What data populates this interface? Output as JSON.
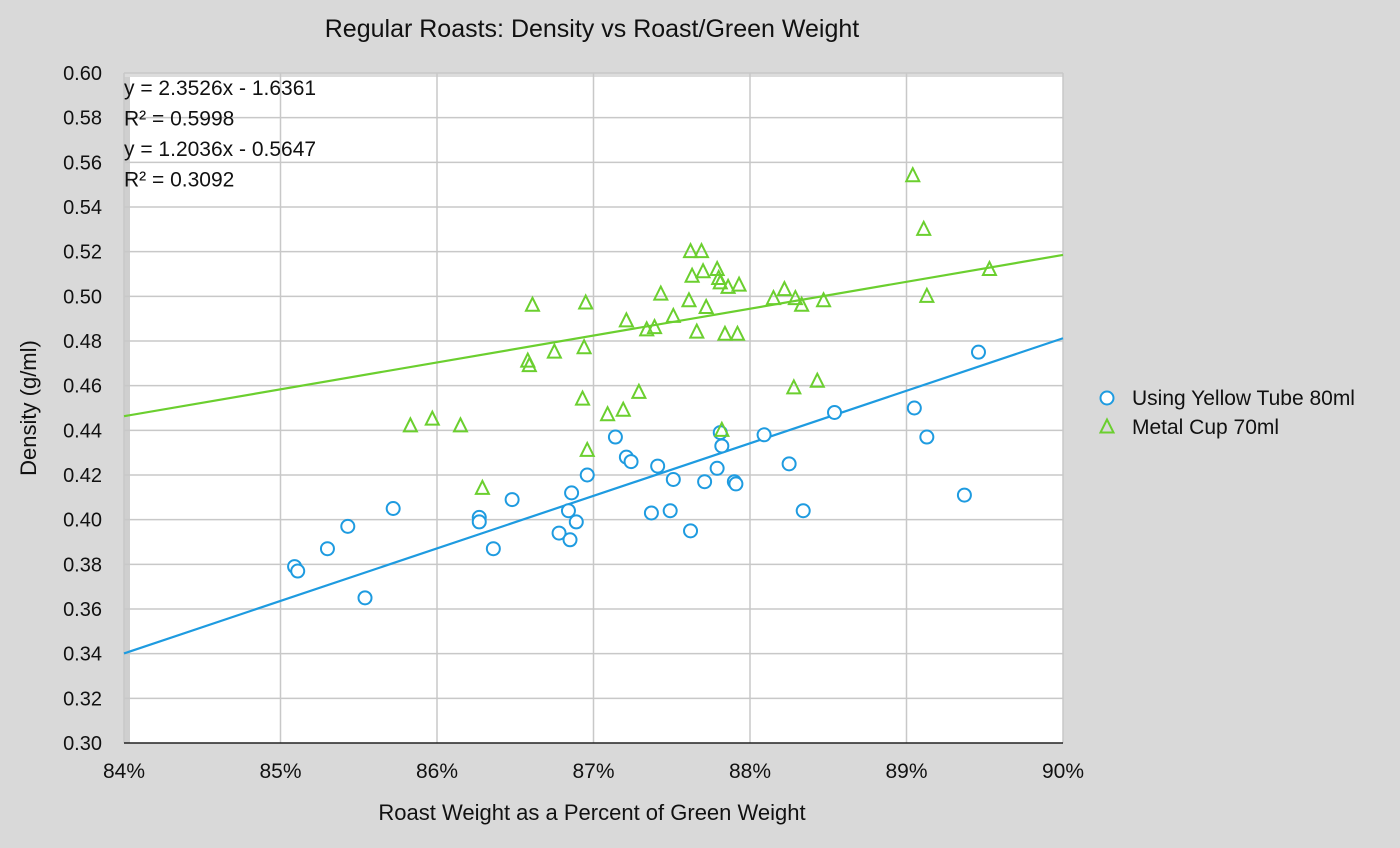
{
  "chart_data": {
    "type": "scatter",
    "title": "Regular Roasts: Density vs Roast/Green Weight",
    "xlabel": "Roast Weight as a Percent of Green Weight",
    "ylabel": "Density (g/ml)",
    "xlim": [
      0.84,
      0.9
    ],
    "ylim": [
      0.3,
      0.6
    ],
    "x_ticks": [
      0.84,
      0.85,
      0.86,
      0.87,
      0.88,
      0.89,
      0.9
    ],
    "x_tick_labels": [
      "84%",
      "85%",
      "86%",
      "87%",
      "88%",
      "89%",
      "90%"
    ],
    "y_ticks": [
      0.3,
      0.32,
      0.34,
      0.36,
      0.38,
      0.4,
      0.42,
      0.44,
      0.46,
      0.48,
      0.5,
      0.52,
      0.54,
      0.56,
      0.58,
      0.6
    ],
    "y_tick_labels": [
      "0.30",
      "0.32",
      "0.34",
      "0.36",
      "0.38",
      "0.40",
      "0.42",
      "0.44",
      "0.46",
      "0.48",
      "0.50",
      "0.52",
      "0.54",
      "0.56",
      "0.58",
      "0.60"
    ],
    "grid": true,
    "legend_position": "right",
    "annotations": [
      "y = 2.3526x - 1.6361",
      "R² = 0.5998",
      "y = 1.2036x - 0.5647",
      "R² = 0.3092"
    ],
    "series": [
      {
        "name": "Using Yellow Tube 80ml",
        "marker": "circle",
        "color": "#1e9be0",
        "trendline": {
          "slope": 2.3526,
          "intercept": -1.6361
        },
        "points": [
          [
            0.8509,
            0.379
          ],
          [
            0.8511,
            0.377
          ],
          [
            0.853,
            0.387
          ],
          [
            0.8543,
            0.397
          ],
          [
            0.8554,
            0.365
          ],
          [
            0.8572,
            0.405
          ],
          [
            0.8627,
            0.401
          ],
          [
            0.8627,
            0.399
          ],
          [
            0.8636,
            0.387
          ],
          [
            0.8648,
            0.409
          ],
          [
            0.8678,
            0.394
          ],
          [
            0.8684,
            0.404
          ],
          [
            0.8685,
            0.391
          ],
          [
            0.8686,
            0.412
          ],
          [
            0.8689,
            0.399
          ],
          [
            0.8696,
            0.42
          ],
          [
            0.8714,
            0.437
          ],
          [
            0.8721,
            0.428
          ],
          [
            0.8724,
            0.426
          ],
          [
            0.8737,
            0.403
          ],
          [
            0.8741,
            0.424
          ],
          [
            0.8749,
            0.404
          ],
          [
            0.8751,
            0.418
          ],
          [
            0.8762,
            0.395
          ],
          [
            0.8771,
            0.417
          ],
          [
            0.8779,
            0.423
          ],
          [
            0.8781,
            0.439
          ],
          [
            0.8782,
            0.433
          ],
          [
            0.879,
            0.417
          ],
          [
            0.8791,
            0.416
          ],
          [
            0.8809,
            0.438
          ],
          [
            0.8825,
            0.425
          ],
          [
            0.8834,
            0.404
          ],
          [
            0.8854,
            0.448
          ],
          [
            0.8905,
            0.45
          ],
          [
            0.8913,
            0.437
          ],
          [
            0.8937,
            0.411
          ],
          [
            0.8946,
            0.475
          ]
        ]
      },
      {
        "name": "Metal Cup 70ml",
        "marker": "triangle",
        "color": "#6bcf2f",
        "trendline": {
          "slope": 1.2036,
          "intercept": -0.5647
        },
        "points": [
          [
            0.8583,
            0.442
          ],
          [
            0.8597,
            0.445
          ],
          [
            0.8615,
            0.442
          ],
          [
            0.8629,
            0.414
          ],
          [
            0.8658,
            0.471
          ],
          [
            0.8659,
            0.469
          ],
          [
            0.8661,
            0.496
          ],
          [
            0.8675,
            0.475
          ],
          [
            0.8693,
            0.454
          ],
          [
            0.8694,
            0.477
          ],
          [
            0.8695,
            0.497
          ],
          [
            0.8696,
            0.431
          ],
          [
            0.8709,
            0.447
          ],
          [
            0.8719,
            0.449
          ],
          [
            0.8721,
            0.489
          ],
          [
            0.8729,
            0.457
          ],
          [
            0.8734,
            0.485
          ],
          [
            0.8739,
            0.486
          ],
          [
            0.8743,
            0.501
          ],
          [
            0.8751,
            0.491
          ],
          [
            0.8761,
            0.498
          ],
          [
            0.8762,
            0.52
          ],
          [
            0.8763,
            0.509
          ],
          [
            0.8766,
            0.484
          ],
          [
            0.8769,
            0.52
          ],
          [
            0.877,
            0.511
          ],
          [
            0.8772,
            0.495
          ],
          [
            0.8779,
            0.512
          ],
          [
            0.878,
            0.508
          ],
          [
            0.8781,
            0.506
          ],
          [
            0.8782,
            0.44
          ],
          [
            0.8784,
            0.483
          ],
          [
            0.8786,
            0.504
          ],
          [
            0.8792,
            0.483
          ],
          [
            0.8793,
            0.505
          ],
          [
            0.8815,
            0.499
          ],
          [
            0.8822,
            0.503
          ],
          [
            0.8828,
            0.459
          ],
          [
            0.8829,
            0.499
          ],
          [
            0.8833,
            0.496
          ],
          [
            0.8843,
            0.462
          ],
          [
            0.8847,
            0.498
          ],
          [
            0.8904,
            0.554
          ],
          [
            0.8911,
            0.53
          ],
          [
            0.8913,
            0.5
          ],
          [
            0.8953,
            0.512
          ]
        ]
      }
    ]
  }
}
